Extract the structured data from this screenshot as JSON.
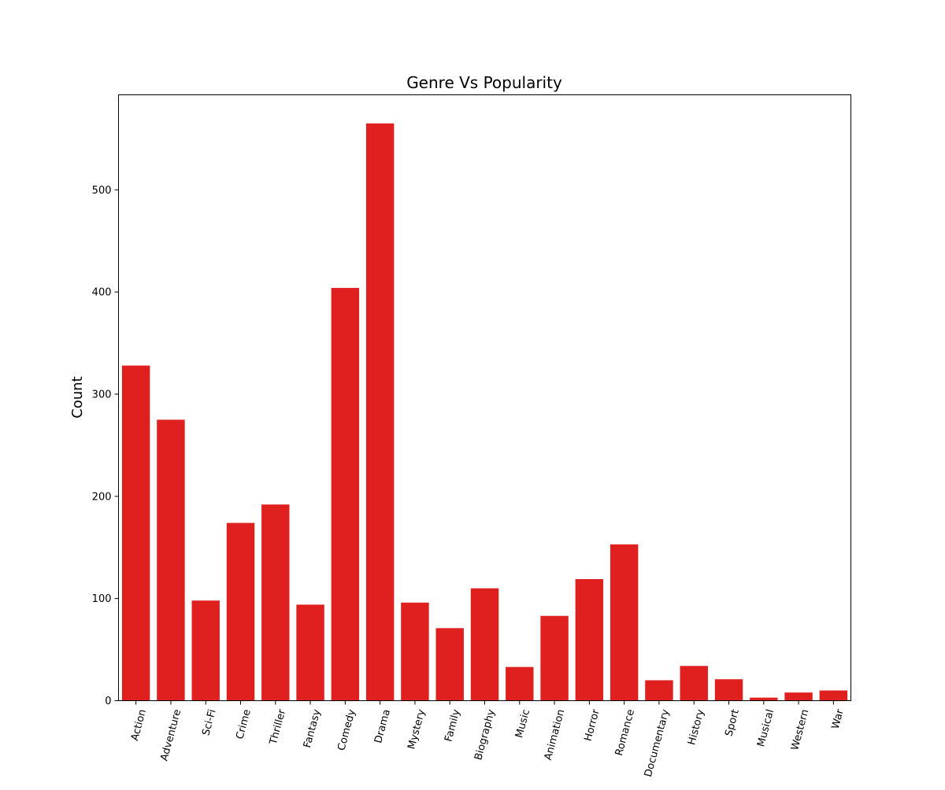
{
  "chart_data": {
    "type": "bar",
    "title": "Genre Vs Popularity",
    "xlabel": "",
    "ylabel": "Count",
    "categories": [
      "Action",
      "Adventure",
      "Sci-Fi",
      "Crime",
      "Thriller",
      "Fantasy",
      "Comedy",
      "Drama",
      "Mystery",
      "Family",
      "Biography",
      "Music",
      "Animation",
      "Horror",
      "Romance",
      "Documentary",
      "History",
      "Sport",
      "Musical",
      "Western",
      "War"
    ],
    "values": [
      328,
      275,
      98,
      174,
      192,
      94,
      404,
      565,
      96,
      71,
      110,
      33,
      83,
      119,
      153,
      20,
      34,
      21,
      3,
      8,
      10
    ],
    "ylim": [
      0,
      593
    ],
    "yticks": [
      0,
      100,
      200,
      300,
      400,
      500
    ],
    "grid": false,
    "legend": "none",
    "bar_color": "#e01f1f",
    "xtick_rotation_deg": 75
  }
}
